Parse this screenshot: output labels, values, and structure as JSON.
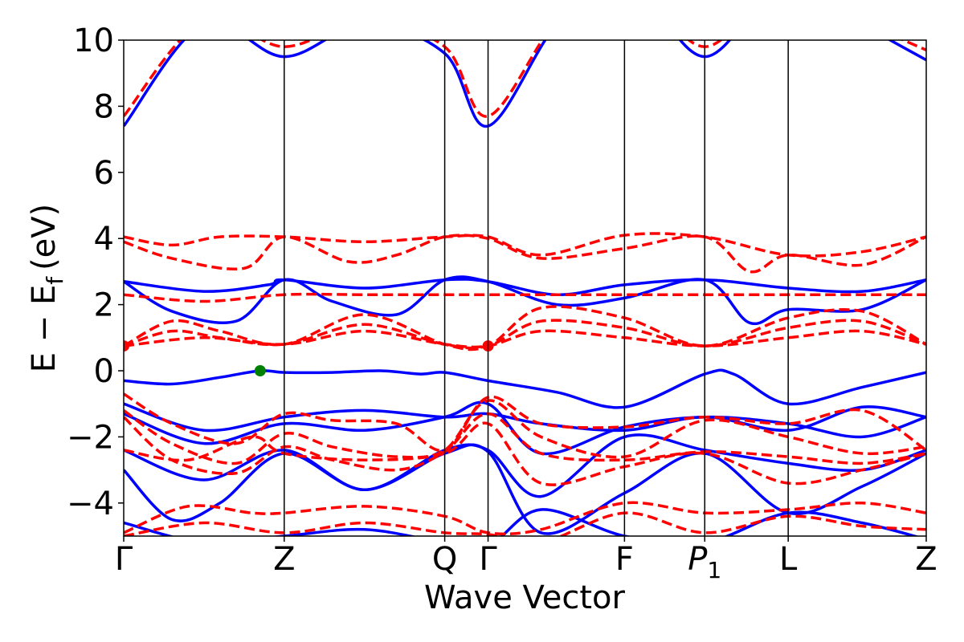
{
  "chart_data": {
    "type": "line",
    "xlabel": "Wave Vector",
    "ylabel": "E − E_f (eV)",
    "ylabel_parts": {
      "main": "E − E",
      "sub": "f",
      "unit": "(eV)"
    },
    "ylim": [
      -5,
      10
    ],
    "y_ticks": [
      -4,
      -2,
      0,
      2,
      4,
      6,
      8,
      10
    ],
    "y_tick_labels": [
      "−4",
      "−2",
      "0",
      "2",
      "4",
      "6",
      "8",
      "10"
    ],
    "x_ticks": [
      {
        "pos": 0,
        "label": "Γ"
      },
      {
        "pos": 1,
        "label": "Z"
      },
      {
        "pos": 2,
        "label": "Q"
      },
      {
        "pos": 2.27,
        "label": "Γ"
      },
      {
        "pos": 3.12,
        "label": "F"
      },
      {
        "pos": 3.62,
        "label": "P",
        "sub": "1"
      },
      {
        "pos": 4.14,
        "label": "L"
      },
      {
        "pos": 5,
        "label": "Z"
      }
    ],
    "grid": false,
    "series": [
      {
        "style": "solid",
        "color": "#0000ff",
        "bands": [
          {
            "x": [
              0,
              0.5,
              1,
              1.5,
              2,
              2.27,
              2.7,
              3.12,
              3.62,
              4.14,
              4.6,
              5
            ],
            "y": [
              7.4,
              10.5,
              9.5,
              10.5,
              9.6,
              7.4,
              10.5,
              12,
              9.5,
              12,
              10.5,
              9.4
            ]
          },
          {
            "x": [
              0,
              0.5,
              0.9,
              1,
              1.5,
              2,
              2.27,
              2.7,
              3.12,
              3.62,
              4.14,
              4.6,
              5
            ],
            "y": [
              2.7,
              2.4,
              2.6,
              2.75,
              2.5,
              2.75,
              2.7,
              2.3,
              2.6,
              2.75,
              2.5,
              2.4,
              2.75
            ]
          },
          {
            "x": [
              0,
              0.3,
              0.7,
              1,
              1.3,
              1.7,
              2,
              2.27,
              2.7,
              3.12,
              3.62,
              3.9,
              4.14,
              4.6,
              5
            ],
            "y": [
              2.7,
              1.8,
              1.5,
              2.75,
              2.1,
              1.7,
              2.75,
              2.7,
              2.0,
              2.2,
              2.75,
              1.45,
              1.85,
              1.85,
              2.75
            ]
          },
          {
            "x": [
              0,
              0.3,
              0.6,
              0.85,
              1,
              1.3,
              1.6,
              1.85,
              2,
              2.27,
              2.7,
              3.12,
              3.62,
              3.8,
              4.14,
              4.6,
              5
            ],
            "y": [
              -0.3,
              -0.4,
              -0.2,
              0.0,
              -0.05,
              -0.05,
              0.0,
              -0.1,
              -0.05,
              -0.3,
              -0.65,
              -1.1,
              -0.1,
              -0.1,
              -1.0,
              -0.5,
              -0.05
            ]
          },
          {
            "x": [
              0,
              0.5,
              1,
              1.5,
              2,
              2.27,
              2.6,
              3.12,
              3.62,
              4.14,
              4.6,
              5
            ],
            "y": [
              -1.0,
              -1.8,
              -1.4,
              -1.2,
              -1.4,
              -1.3,
              -1.6,
              -1.8,
              -1.4,
              -1.8,
              -1.1,
              -1.4
            ]
          },
          {
            "x": [
              0,
              0.5,
              1,
              1.5,
              2,
              2.27,
              2.6,
              3.12,
              3.62,
              4.14,
              4.6,
              5
            ],
            "y": [
              -1.3,
              -2.2,
              -1.6,
              -1.8,
              -1.4,
              -1.0,
              -2.5,
              -1.7,
              -1.4,
              -1.6,
              -2.0,
              -1.4
            ]
          },
          {
            "x": [
              0,
              0.5,
              1,
              1.5,
              2,
              2.27,
              2.6,
              3.12,
              3.62,
              4.14,
              4.6,
              5
            ],
            "y": [
              -2.4,
              -3.3,
              -2.4,
              -3.6,
              -2.4,
              -2.4,
              -3.8,
              -2.0,
              -2.4,
              -2.8,
              -3.0,
              -2.4
            ]
          },
          {
            "x": [
              0,
              0.3,
              0.6,
              1,
              1.5,
              2,
              2.27,
              2.6,
              3.12,
              3.62,
              4.14,
              4.6,
              5
            ],
            "y": [
              -3.0,
              -4.5,
              -4.0,
              -2.5,
              -3.6,
              -2.5,
              -2.45,
              -4.9,
              -3.7,
              -2.5,
              -4.3,
              -3.5,
              -2.5
            ]
          },
          {
            "x": [
              0,
              0.5,
              1,
              1.5,
              2,
              2.27,
              2.6,
              3.12,
              3.62,
              4.14,
              4.6,
              5
            ],
            "y": [
              -4.6,
              -5.2,
              -5.0,
              -4.8,
              -5.2,
              -5.3,
              -4.2,
              -5.0,
              -5.2,
              -4.3,
              -4.6,
              -5.1
            ]
          }
        ]
      },
      {
        "style": "dashed",
        "color": "#ff0000",
        "bands": [
          {
            "x": [
              0,
              0.5,
              1,
              1.5,
              2,
              2.27,
              2.7,
              3.12,
              3.62,
              4.14,
              4.6,
              5
            ],
            "y": [
              7.7,
              10.6,
              9.8,
              10.6,
              9.8,
              7.7,
              10.6,
              12,
              9.8,
              12,
              10.6,
              9.7
            ]
          },
          {
            "x": [
              0,
              0.3,
              0.6,
              1,
              1.5,
              2,
              2.27,
              2.6,
              3.12,
              3.62,
              4.14,
              4.6,
              5
            ],
            "y": [
              4.05,
              3.8,
              4.05,
              4.05,
              3.9,
              4.05,
              4.05,
              3.5,
              4.1,
              4.05,
              3.5,
              3.6,
              4.05
            ]
          },
          {
            "x": [
              0,
              0.3,
              0.75,
              1,
              1.4,
              1.7,
              2,
              2.27,
              2.6,
              3.12,
              3.62,
              3.9,
              4.14,
              4.6,
              5
            ],
            "y": [
              3.9,
              3.4,
              3.1,
              4.05,
              3.3,
              3.5,
              4.05,
              4.0,
              3.4,
              3.7,
              4.05,
              3.0,
              3.5,
              3.2,
              4.05
            ]
          },
          {
            "x": [
              0,
              0.5,
              1,
              1.5,
              2,
              2.27,
              2.6,
              3.12,
              3.62,
              4.14,
              4.6,
              5
            ],
            "y": [
              2.3,
              2.1,
              2.3,
              2.3,
              2.3,
              2.3,
              2.3,
              2.3,
              2.3,
              2.3,
              2.3,
              2.3
            ]
          },
          {
            "x": [
              0,
              0.3,
              0.6,
              1,
              1.5,
              2,
              2.27,
              2.6,
              3.12,
              3.62,
              4.14,
              4.6,
              5
            ],
            "y": [
              0.75,
              1.5,
              1.2,
              0.8,
              1.7,
              0.8,
              0.75,
              1.9,
              1.6,
              0.75,
              1.6,
              1.8,
              0.8
            ]
          },
          {
            "x": [
              0,
              0.3,
              0.6,
              1,
              1.5,
              2,
              2.27,
              2.6,
              3.12,
              3.62,
              4.14,
              4.6,
              5
            ],
            "y": [
              0.75,
              1.2,
              1.0,
              0.8,
              1.4,
              0.8,
              0.75,
              1.5,
              1.3,
              0.75,
              1.3,
              1.5,
              0.8
            ]
          },
          {
            "x": [
              0,
              0.5,
              1,
              1.5,
              2,
              2.27,
              2.6,
              3.12,
              3.62,
              4.14,
              4.6,
              5
            ],
            "y": [
              0.75,
              1.0,
              0.8,
              1.2,
              0.8,
              0.75,
              1.2,
              1.0,
              0.75,
              1.0,
              1.2,
              0.8
            ]
          },
          {
            "x": [
              0,
              0.3,
              0.7,
              1,
              1.3,
              1.7,
              2,
              2.27,
              2.6,
              3.12,
              3.62,
              4.14,
              4.6,
              5
            ],
            "y": [
              -0.7,
              -1.6,
              -2.2,
              -1.3,
              -1.5,
              -1.6,
              -2.4,
              -0.8,
              -1.6,
              -1.7,
              -1.4,
              -1.6,
              -1.2,
              -2.4
            ]
          },
          {
            "x": [
              0,
              0.3,
              0.7,
              1,
              1.3,
              1.7,
              2,
              2.27,
              2.6,
              3.12,
              3.62,
              4.14,
              4.6,
              5
            ],
            "y": [
              -1.2,
              -2.2,
              -2.8,
              -1.9,
              -2.3,
              -2.6,
              -2.4,
              -0.9,
              -2.0,
              -2.6,
              -1.5,
              -2.0,
              -2.5,
              -2.3
            ]
          },
          {
            "x": [
              0,
              0.3,
              0.7,
              1,
              1.3,
              1.7,
              2,
              2.27,
              2.6,
              3.12,
              3.62,
              4.14,
              4.6,
              5
            ],
            "y": [
              -1.4,
              -2.7,
              -3.1,
              -2.3,
              -2.7,
              -3.0,
              -2.45,
              -1.3,
              -2.5,
              -2.7,
              -2.45,
              -2.6,
              -2.8,
              -2.5
            ]
          },
          {
            "x": [
              0,
              0.4,
              0.8,
              1,
              1.5,
              2,
              2.27,
              2.6,
              3.12,
              3.62,
              4.14,
              4.6,
              5
            ],
            "y": [
              -2.4,
              -2.7,
              -2.0,
              -2.5,
              -2.7,
              -2.5,
              -1.6,
              -3.4,
              -2.9,
              -2.5,
              -3.4,
              -3.0,
              -2.5
            ]
          },
          {
            "x": [
              0,
              0.4,
              0.8,
              1,
              1.5,
              2,
              2.27,
              2.6,
              3.12,
              3.62,
              4.14,
              4.6,
              5
            ],
            "y": [
              -4.9,
              -4.1,
              -4.3,
              -4.3,
              -4.1,
              -4.4,
              -4.9,
              -4.8,
              -4.0,
              -4.3,
              -4.2,
              -4.0,
              -4.3
            ]
          },
          {
            "x": [
              0,
              0.5,
              1,
              1.5,
              2,
              2.27,
              2.6,
              3.12,
              3.62,
              4.14,
              4.6,
              5
            ],
            "y": [
              -5.0,
              -4.6,
              -4.9,
              -4.6,
              -4.9,
              -4.95,
              -5.2,
              -4.3,
              -4.9,
              -4.4,
              -4.7,
              -4.8
            ]
          }
        ]
      }
    ],
    "markers": [
      {
        "x": 0,
        "y": 0.75,
        "color": "#ff0000"
      },
      {
        "x": 2.27,
        "y": 0.75,
        "color": "#ff0000"
      },
      {
        "x": 0.85,
        "y": 0.0,
        "color": "#008000"
      }
    ]
  }
}
